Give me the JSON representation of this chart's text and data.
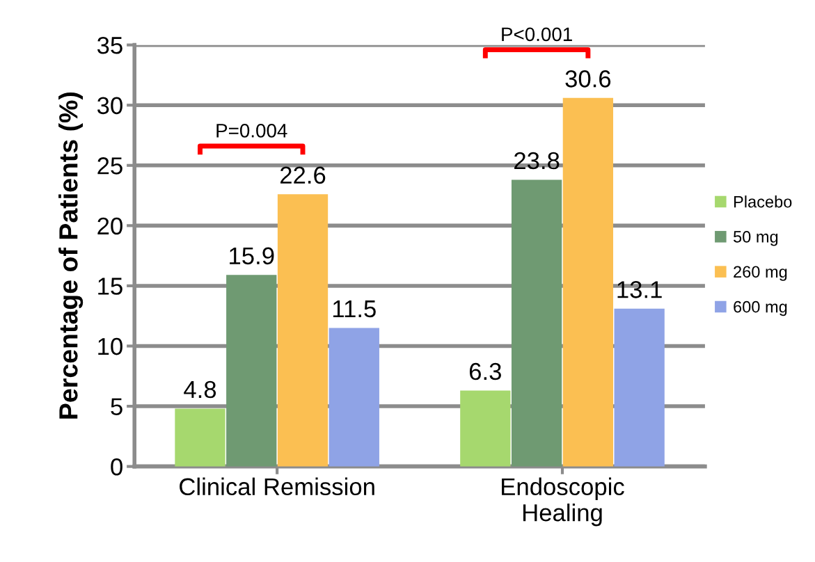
{
  "chart_data": {
    "type": "bar",
    "ylabel": "Percentage of Patients (%)",
    "categories": [
      "Clinical Remission",
      "Endoscopic\nHealing"
    ],
    "series": [
      {
        "name": "Placebo",
        "color": "#a6d86e",
        "values": [
          4.8,
          6.3
        ]
      },
      {
        "name": "50 mg",
        "color": "#6f9a72",
        "values": [
          15.9,
          23.8
        ]
      },
      {
        "name": "260 mg",
        "color": "#fbbf52",
        "values": [
          22.6,
          30.6
        ]
      },
      {
        "name": "600 mg",
        "color": "#8fa3e6",
        "values": [
          11.5,
          13.1
        ]
      }
    ],
    "ylim": [
      0,
      35
    ],
    "yticks": [
      0,
      5,
      10,
      15,
      20,
      25,
      30,
      35
    ],
    "grid": "y",
    "legend": "right",
    "data_labels": true,
    "annotations": [
      "P=0.004",
      "P<0.001"
    ]
  }
}
